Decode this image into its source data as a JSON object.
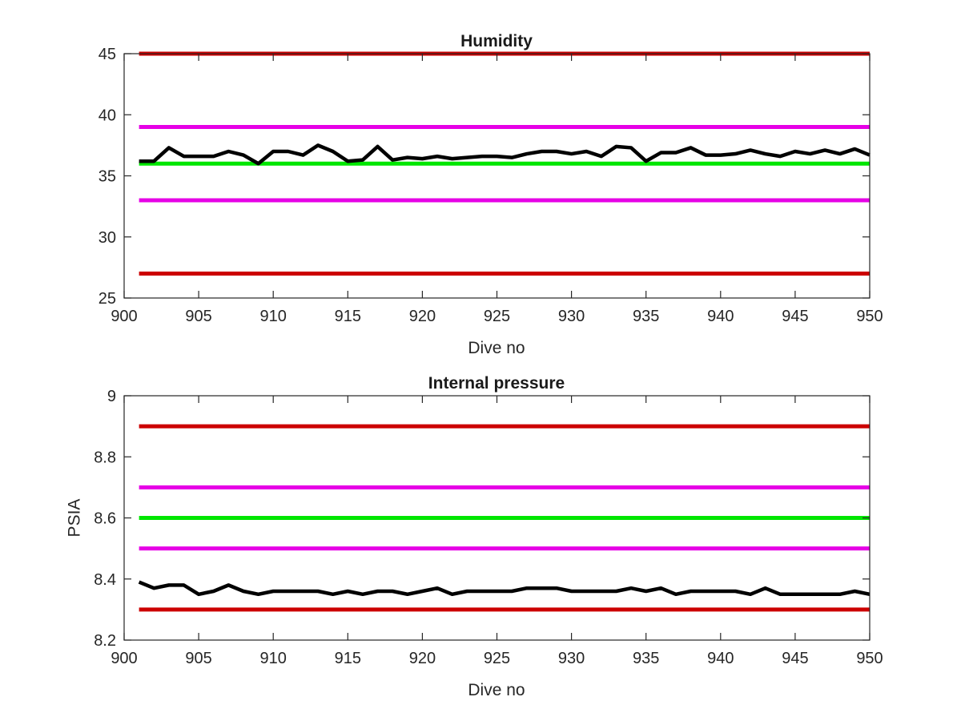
{
  "chart_data": [
    {
      "type": "line",
      "title": "Humidity",
      "xlabel": "Dive no",
      "ylabel": "",
      "xlim": [
        900,
        950
      ],
      "ylim": [
        25,
        45
      ],
      "xticks": [
        900,
        905,
        910,
        915,
        920,
        925,
        930,
        935,
        940,
        945,
        950
      ],
      "yticks": [
        25,
        30,
        35,
        40,
        45
      ],
      "grid": false,
      "legend": "none",
      "limits": [
        {
          "value": 45,
          "color": "#cc0000"
        },
        {
          "value": 39,
          "color": "#e600e6"
        },
        {
          "value": 36,
          "color": "#00e600"
        },
        {
          "value": 33,
          "color": "#e600e6"
        },
        {
          "value": 27,
          "color": "#cc0000"
        }
      ],
      "limits_x": [
        901,
        950
      ],
      "series": [
        {
          "color": "#000000",
          "x": [
            901,
            902,
            903,
            904,
            905,
            906,
            907,
            908,
            909,
            910,
            911,
            912,
            913,
            914,
            915,
            916,
            917,
            918,
            919,
            920,
            921,
            922,
            923,
            924,
            925,
            926,
            927,
            928,
            929,
            930,
            931,
            932,
            933,
            934,
            935,
            936,
            937,
            938,
            939,
            940,
            941,
            942,
            943,
            944,
            945,
            946,
            947,
            948,
            949,
            950
          ],
          "values": [
            36.2,
            36.2,
            37.3,
            36.6,
            36.6,
            36.6,
            37.0,
            36.7,
            36.0,
            37.0,
            37.0,
            36.7,
            37.5,
            37.0,
            36.2,
            36.3,
            37.4,
            36.3,
            36.5,
            36.4,
            36.6,
            36.4,
            36.5,
            36.6,
            36.6,
            36.5,
            36.8,
            37.0,
            37.0,
            36.8,
            37.0,
            36.6,
            37.4,
            37.3,
            36.2,
            36.9,
            36.9,
            37.3,
            36.7,
            36.7,
            36.8,
            37.1,
            36.8,
            36.6,
            37.0,
            36.8,
            37.1,
            36.8,
            37.2,
            36.7
          ]
        }
      ]
    },
    {
      "type": "line",
      "title": "Internal pressure",
      "xlabel": "Dive no",
      "ylabel": "PSIA",
      "xlim": [
        900,
        950
      ],
      "ylim": [
        8.2,
        9
      ],
      "xticks": [
        900,
        905,
        910,
        915,
        920,
        925,
        930,
        935,
        940,
        945,
        950
      ],
      "yticks": [
        8.2,
        8.4,
        8.6,
        8.8,
        9
      ],
      "grid": false,
      "legend": "none",
      "limits": [
        {
          "value": 8.9,
          "color": "#cc0000"
        },
        {
          "value": 8.7,
          "color": "#e600e6"
        },
        {
          "value": 8.6,
          "color": "#00e600"
        },
        {
          "value": 8.5,
          "color": "#e600e6"
        },
        {
          "value": 8.3,
          "color": "#cc0000"
        }
      ],
      "limits_x": [
        901,
        950
      ],
      "series": [
        {
          "color": "#000000",
          "x": [
            901,
            902,
            903,
            904,
            905,
            906,
            907,
            908,
            909,
            910,
            911,
            912,
            913,
            914,
            915,
            916,
            917,
            918,
            919,
            920,
            921,
            922,
            923,
            924,
            925,
            926,
            927,
            928,
            929,
            930,
            931,
            932,
            933,
            934,
            935,
            936,
            937,
            938,
            939,
            940,
            941,
            942,
            943,
            944,
            945,
            946,
            947,
            948,
            949,
            950
          ],
          "values": [
            8.39,
            8.37,
            8.38,
            8.38,
            8.35,
            8.36,
            8.38,
            8.36,
            8.35,
            8.36,
            8.36,
            8.36,
            8.36,
            8.35,
            8.36,
            8.35,
            8.36,
            8.36,
            8.35,
            8.36,
            8.37,
            8.35,
            8.36,
            8.36,
            8.36,
            8.36,
            8.37,
            8.37,
            8.37,
            8.36,
            8.36,
            8.36,
            8.36,
            8.37,
            8.36,
            8.37,
            8.35,
            8.36,
            8.36,
            8.36,
            8.36,
            8.35,
            8.37,
            8.35,
            8.35,
            8.35,
            8.35,
            8.35,
            8.36,
            8.35
          ]
        }
      ]
    }
  ]
}
